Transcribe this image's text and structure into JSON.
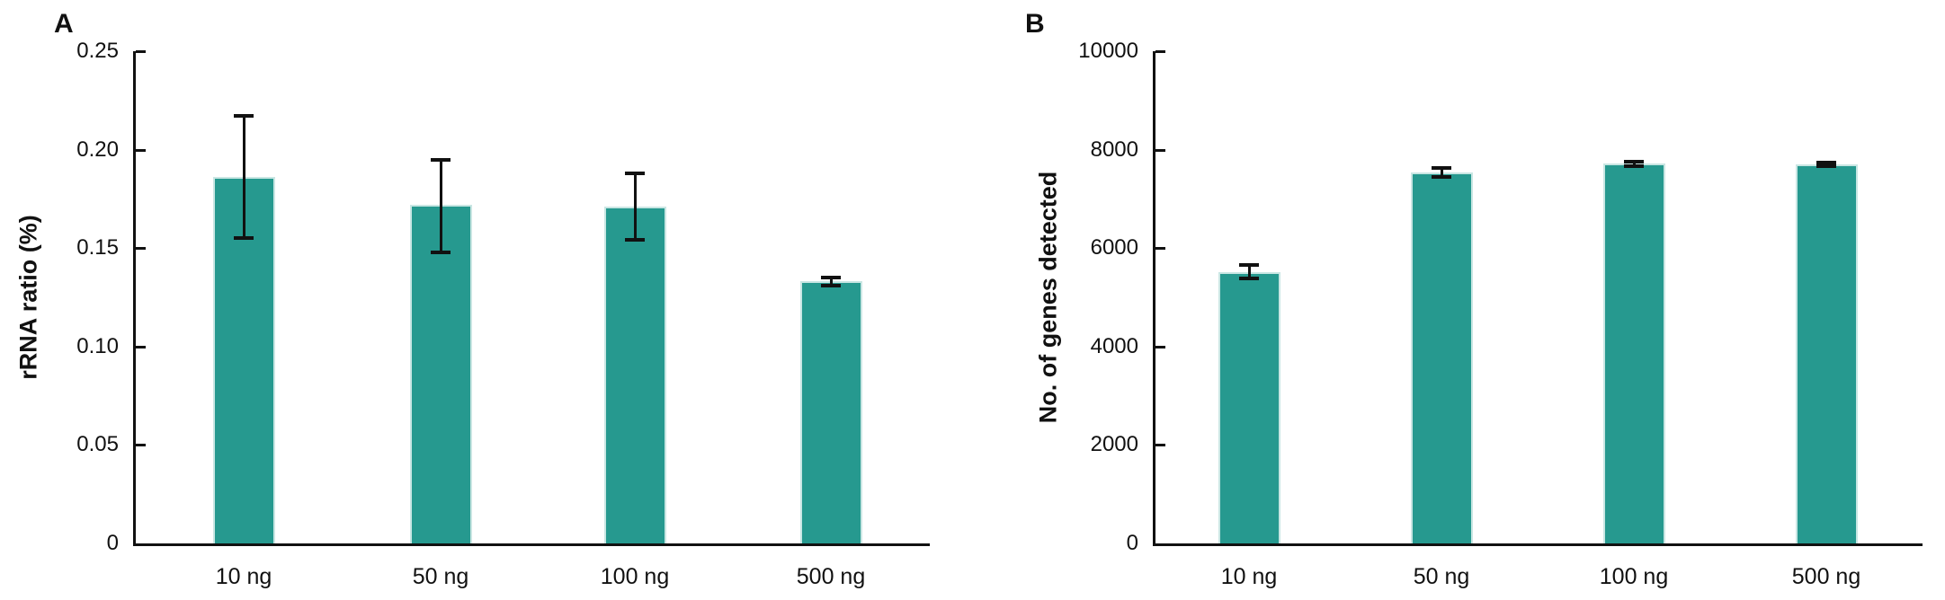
{
  "page": {
    "background_color": "#ffffff",
    "text_color": "#111111",
    "axis_color": "#111111",
    "bar_fill_color": "#26998f",
    "bar_edge_color": "#c9e6e3",
    "error_bar_color": "#111111"
  },
  "chart_data": [
    {
      "type": "bar",
      "panel_label": "A",
      "title": "",
      "xlabel": "",
      "ylabel": "rRNA ratio (%)",
      "categories": [
        "10 ng",
        "50 ng",
        "100 ng",
        "500 ng"
      ],
      "values": [
        0.186,
        0.172,
        0.171,
        0.133
      ],
      "error_upper": [
        0.031,
        0.023,
        0.017,
        0.002
      ],
      "error_lower": [
        0.031,
        0.024,
        0.017,
        0.002
      ],
      "ylim": [
        0,
        0.25
      ],
      "yticks": [
        {
          "value": 0.25,
          "label": "0.25"
        },
        {
          "value": 0.2,
          "label": "0.20"
        },
        {
          "value": 0.15,
          "label": "0.15"
        },
        {
          "value": 0.1,
          "label": "0.10"
        },
        {
          "value": 0.05,
          "label": "0.05"
        },
        {
          "value": 0,
          "label": "0"
        }
      ],
      "grid": false,
      "legend": null,
      "bar_color": "#26998f"
    },
    {
      "type": "bar",
      "panel_label": "B",
      "title": "",
      "xlabel": "",
      "ylabel": "No. of genes detected",
      "categories": [
        "10 ng",
        "50 ng",
        "100 ng",
        "500 ng"
      ],
      "values": [
        5520,
        7540,
        7710,
        7700
      ],
      "error_upper": [
        145,
        90,
        45,
        30
      ],
      "error_lower": [
        145,
        90,
        45,
        30
      ],
      "ylim": [
        0,
        10000
      ],
      "yticks": [
        {
          "value": 10000,
          "label": "10000"
        },
        {
          "value": 8000,
          "label": "8000"
        },
        {
          "value": 6000,
          "label": "6000"
        },
        {
          "value": 4000,
          "label": "4000"
        },
        {
          "value": 2000,
          "label": "2000"
        },
        {
          "value": 0,
          "label": "0"
        }
      ],
      "grid": false,
      "legend": null,
      "bar_color": "#26998f"
    }
  ]
}
